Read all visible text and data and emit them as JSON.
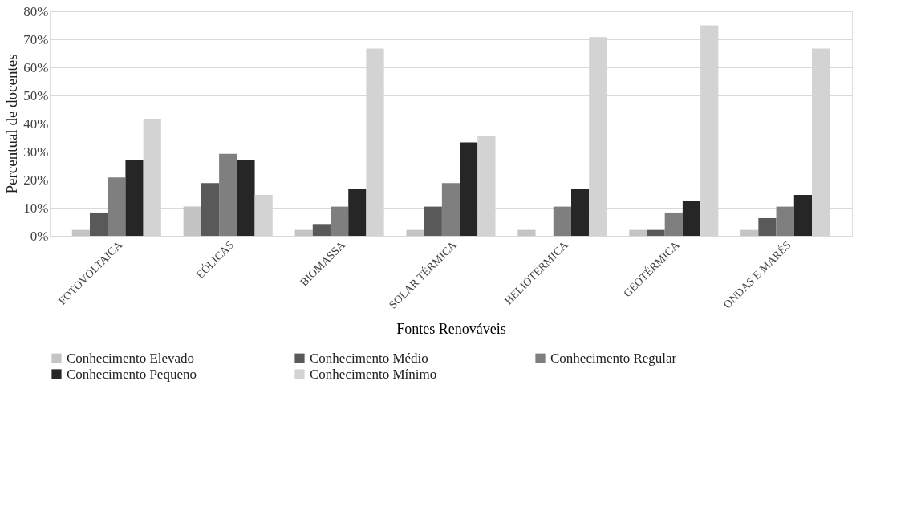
{
  "chart_data": {
    "type": "bar",
    "xlabel": "Fontes Renováveis",
    "ylabel": "Percentual de docentes",
    "categories": [
      "FOTOVOLTAICA",
      "EÓLICAS",
      "BIOMASSA",
      "SOLAR TÉRMICA",
      "HELIOTÉRMICA",
      "GEOTÉRMICA",
      "ONDAS E MARÉS"
    ],
    "series": [
      {
        "name": "Conhecimento Elevado",
        "color": "#c4c4c4",
        "values": [
          2.1,
          10.4,
          2.1,
          2.1,
          2.1,
          2.1,
          2.1
        ]
      },
      {
        "name": "Conhecimento Médio",
        "color": "#595959",
        "values": [
          8.3,
          18.8,
          4.2,
          10.4,
          0,
          2.1,
          6.3
        ]
      },
      {
        "name": "Conhecimento Regular",
        "color": "#7f7f7f",
        "values": [
          20.8,
          29.2,
          10.4,
          18.8,
          10.4,
          8.3,
          10.4
        ]
      },
      {
        "name": "Conhecimento Pequeno",
        "color": "#262626",
        "values": [
          27.1,
          27.1,
          16.7,
          33.3,
          16.7,
          12.5,
          14.6
        ]
      },
      {
        "name": "Conhecimento Mínimo",
        "color": "#d3d3d3",
        "values": [
          41.7,
          14.6,
          66.7,
          35.4,
          70.8,
          75.0,
          66.7
        ]
      }
    ],
    "ylim": [
      0,
      80
    ],
    "yticks": [
      {
        "value": 0,
        "label": "0%"
      },
      {
        "value": 10,
        "label": "10%"
      },
      {
        "value": 20,
        "label": "20%"
      },
      {
        "value": 30,
        "label": "30%"
      },
      {
        "value": 40,
        "label": "40%"
      },
      {
        "value": 50,
        "label": "50%"
      },
      {
        "value": 60,
        "label": "60%"
      },
      {
        "value": 70,
        "label": "70%"
      },
      {
        "value": 80,
        "label": "80%"
      }
    ],
    "grid": "y",
    "legend": "bottom"
  }
}
